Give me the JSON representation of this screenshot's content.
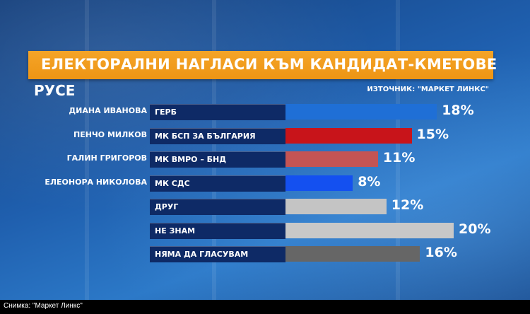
{
  "chart_data": {
    "type": "bar",
    "title": "ЕЛЕКТОРАЛНИ НАГЛАСИ КЪМ КАНДИДАТ-КМЕТОВЕ",
    "subtitle": "РУСЕ",
    "source": "ИЗТОЧНИК: \"МАРКЕТ ЛИНКС\"",
    "unit": "%",
    "rows": [
      {
        "candidate": "ДИАНА ИВАНОВА",
        "party": "ГЕРБ",
        "value": 18,
        "label": "18%",
        "color": "#1f6fd6"
      },
      {
        "candidate": "ПЕНЧО МИЛКОВ",
        "party": "МК БСП ЗА БЪЛГАРИЯ",
        "value": 15,
        "label": "15%",
        "color": "#c8141a"
      },
      {
        "candidate": "ГАЛИН ГРИГОРОВ",
        "party": "МК ВМРО – БНД",
        "value": 11,
        "label": "11%",
        "color": "#c45454"
      },
      {
        "candidate": "ЕЛЕОНОРА НИКОЛОВА",
        "party": "МК СДС",
        "value": 8,
        "label": "8%",
        "color": "#1450f0"
      },
      {
        "candidate": "",
        "party": "ДРУГ",
        "value": 12,
        "label": "12%",
        "color": "#c4c4c4"
      },
      {
        "candidate": "",
        "party": "НЕ ЗНАМ",
        "value": 20,
        "label": "20%",
        "color": "#c8c8c8"
      },
      {
        "candidate": "",
        "party": "НЯМА ДА ГЛАСУВАМ",
        "value": 16,
        "label": "16%",
        "color": "#666666"
      }
    ],
    "xlim": [
      0,
      20
    ]
  },
  "caption": "Снимка: \"Маркет Линкс\""
}
